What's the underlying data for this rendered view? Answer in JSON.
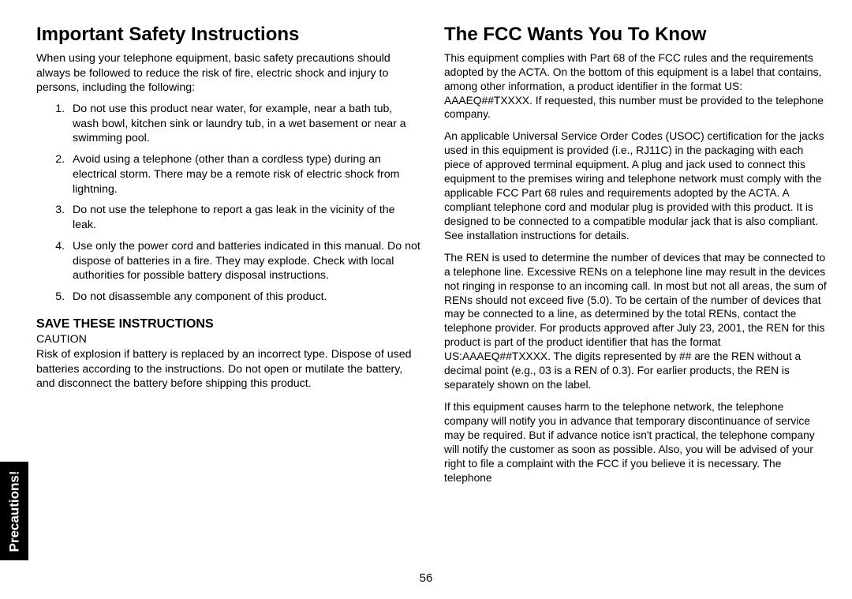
{
  "side_tab": "Precautions!",
  "page_number": "56",
  "left": {
    "heading": "Important Safety Instructions",
    "intro": "When using your telephone equipment, basic safety precautions should always be followed to reduce the risk of fire, electric shock and injury to persons, including the following:",
    "list": [
      "Do not use this product near water, for example, near a bath tub, wash bowl, kitchen sink or laundry tub, in a wet basement or near a swimming pool.",
      "Avoid using a telephone (other than a cordless type) during an electrical storm. There may be a remote risk of electric shock from lightning.",
      "Do not use the telephone to report a gas leak in the vicinity of the leak.",
      "Use only the power cord and batteries indicated in this manual. Do not dispose of batteries in a fire. They may explode. Check with local authorities for possible battery disposal instructions.",
      "Do not disassemble any component of this product."
    ],
    "save_heading": "SAVE THESE INSTRUCTIONS",
    "caution_label": "CAUTION",
    "caution_body": "Risk of explosion if battery is replaced by an incorrect type. Dispose of used batteries according to the instructions. Do not open or mutilate the battery, and disconnect the battery before shipping this product."
  },
  "right": {
    "heading": "The FCC Wants You To Know",
    "paras": [
      "This equipment complies with Part 68 of the FCC rules and the requirements adopted by the ACTA. On the bottom of this equipment is a label that contains, among other information, a product identifier in the format US: AAAEQ##TXXXX. If requested, this number must be provided to the telephone company.",
      "An applicable Universal Service Order Codes (USOC) certification for the jacks used in this equipment is provided (i.e., RJ11C) in the packaging with each piece of approved terminal equipment. A plug and jack used to connect this equipment to the premises wiring and telephone network must comply with the applicable FCC Part 68 rules and requirements adopted by the ACTA. A compliant telephone cord and modular plug is provided with this product. It is designed to be connected to a compatible modular jack that is also compliant. See installation instructions for details.",
      "The REN is used to determine the number of devices that may be connected to a telephone line. Excessive RENs on a telephone line may result in the devices not ringing in response to an incoming call. In most but not all areas, the sum of RENs should not exceed five (5.0). To be certain of the number of devices that may be connected to a line, as determined by the total RENs, contact the telephone provider. For products approved after July 23, 2001, the REN for this product is part of the product identifier that has the format US:AAAEQ##TXXXX. The digits represented by ## are the REN without a decimal point (e.g., 03 is a REN of 0.3). For earlier products, the REN is separately shown on the label.",
      "If this equipment causes harm to the telephone network, the telephone company will notify you in advance that temporary discontinuance of service may be required. But if advance notice isn't practical, the telephone company will notify the customer as soon as possible. Also, you will be advised of your right to file a complaint with the FCC if you believe it is necessary. The telephone"
    ]
  }
}
